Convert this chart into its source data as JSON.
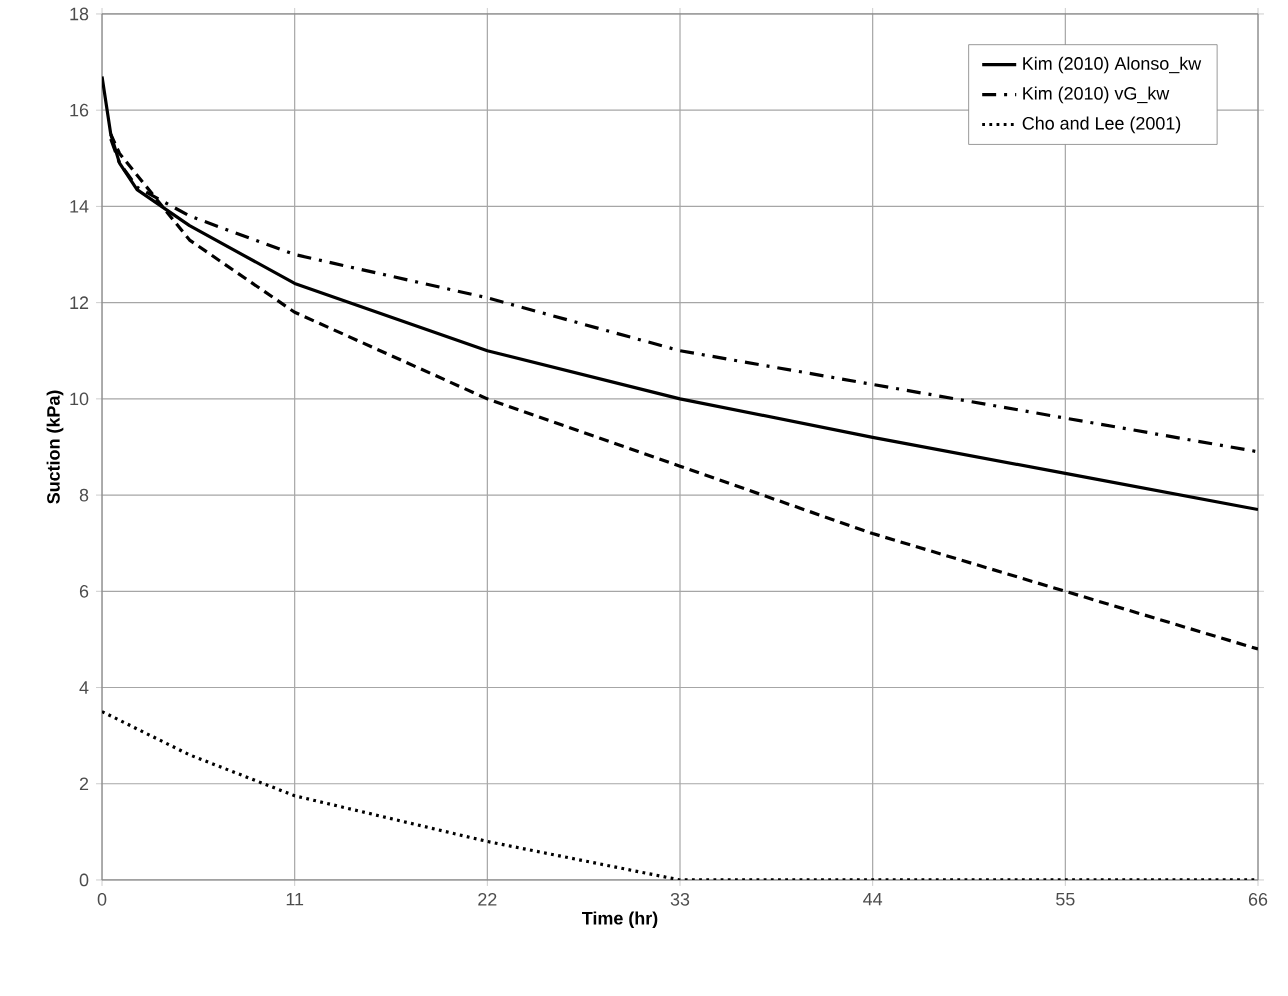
{
  "chart_data": {
    "type": "line",
    "xlabel": "Time (hr)",
    "ylabel": "Suction (kPa)",
    "xlim": [
      0,
      66
    ],
    "xticks": [
      0,
      11,
      22,
      33,
      44,
      55,
      66
    ],
    "ylim": [
      0,
      18
    ],
    "yticks": [
      0,
      2,
      4,
      6,
      8,
      10,
      12,
      14,
      16,
      18
    ],
    "grid": true,
    "legend": "top right",
    "series": [
      {
        "name": "Kim (2010) Alonso_kw",
        "color": "#000000",
        "line_style": "solid",
        "x": [
          0,
          0.5,
          1,
          2,
          5,
          11,
          22,
          33,
          44,
          55,
          66
        ],
        "values": [
          16.7,
          15.5,
          14.9,
          14.35,
          13.6,
          12.4,
          11,
          10,
          9.2,
          8.45,
          7.7
        ]
      },
      {
        "name": "Kim (2010) vG_kw",
        "color": "#000000",
        "line_style": "dashdot",
        "x": [
          0.5,
          1,
          2,
          5,
          11,
          22,
          33,
          44,
          55,
          66
        ],
        "values": [
          15.4,
          14.9,
          14.4,
          13.8,
          13.0,
          12.1,
          11.0,
          10.3,
          9.6,
          8.9
        ]
      },
      {
        "name": "Cho and Lee (2001)",
        "color": "#000000",
        "line_style": "dotted",
        "x": [
          0,
          5,
          11,
          22,
          33,
          66
        ],
        "values": [
          3.5,
          2.6,
          1.75,
          0.8,
          0,
          0
        ]
      },
      {
        "color": "#000000",
        "line_style": "dashed",
        "x": [
          0.5,
          1,
          3,
          5,
          11,
          22,
          33,
          44,
          55,
          66
        ],
        "values": [
          15.5,
          15.1,
          14.2,
          13.3,
          11.8,
          10,
          8.6,
          7.2,
          6,
          4.8
        ]
      }
    ]
  }
}
